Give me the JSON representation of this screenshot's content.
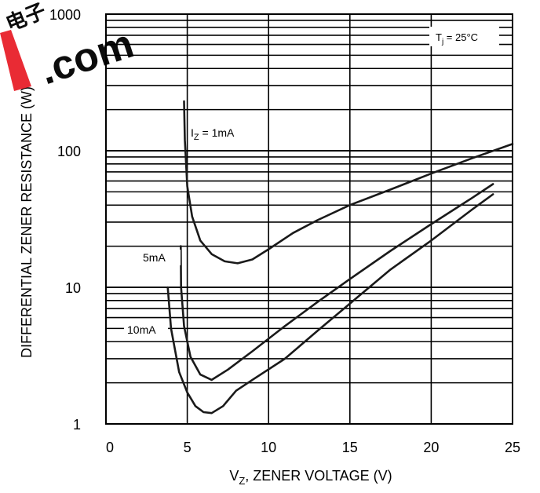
{
  "watermark": {
    "text": ".com",
    "glyph": "电子",
    "color": "#e8202a"
  },
  "chart_data": {
    "type": "line",
    "title": "",
    "xlabel": "V",
    "xlabel_sub": "Z",
    "xlabel_rest": ", ZENER VOLTAGE (V)",
    "ylabel": "DIFFERENTIAL ZENER RESISTANCE (W)",
    "x_ticks": [
      "0",
      "5",
      "10",
      "15",
      "20",
      "25"
    ],
    "y_ticks": [
      "1",
      "10",
      "100",
      "1000"
    ],
    "xlim": [
      0,
      25
    ],
    "ylim": [
      1,
      1000
    ],
    "yscale": "log",
    "grid": "horizontal log grid only",
    "condition": {
      "prefix": "T",
      "sub": "j",
      "suffix": " = 25°C"
    },
    "series": [
      {
        "name": "IZ = 1mA",
        "label_prefix": "I",
        "label_sub": "Z",
        "label_suffix": " = 1mA",
        "x": [
          4.8,
          4.85,
          5.0,
          5.3,
          5.8,
          6.5,
          7.3,
          8.1,
          9.0,
          10.0,
          11.5,
          13.0,
          15.0,
          17.5,
          20.0,
          22.5,
          25.0
        ],
        "y": [
          230,
          120,
          55,
          33,
          22,
          17.5,
          15.5,
          15.0,
          16.0,
          19,
          25,
          31,
          40,
          52,
          68,
          88,
          112
        ]
      },
      {
        "name": "5mA",
        "label": "5mA",
        "x": [
          4.6,
          4.62,
          4.8,
          5.2,
          5.8,
          6.5,
          7.5,
          9.0,
          11.0,
          13.0,
          15.0,
          17.5,
          20.0,
          22.5,
          23.8
        ],
        "y": [
          20,
          10,
          5.2,
          3.1,
          2.3,
          2.1,
          2.5,
          3.4,
          5.2,
          7.8,
          11.5,
          18.5,
          29,
          45,
          57
        ]
      },
      {
        "name": "10mA",
        "label": "10mA",
        "x": [
          3.8,
          4.0,
          4.5,
          5.0,
          5.5,
          6.0,
          6.5,
          7.2,
          8.0,
          9.0,
          11.0,
          13.0,
          15.0,
          17.5,
          20.0,
          22.5,
          23.8
        ],
        "y": [
          10,
          5.0,
          2.4,
          1.7,
          1.35,
          1.22,
          1.2,
          1.35,
          1.75,
          2.1,
          3.0,
          4.8,
          7.6,
          13.5,
          22,
          37,
          48
        ]
      }
    ]
  }
}
